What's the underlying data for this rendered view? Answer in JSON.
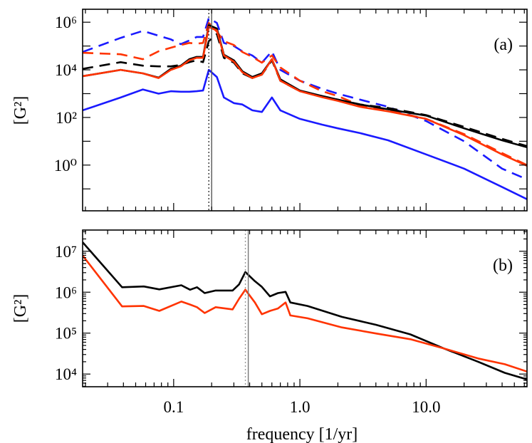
{
  "chart_data": [
    {
      "type": "line",
      "panel_label": "(a)",
      "ylabel": "[G²]",
      "xlabel": "",
      "x_scale": "log",
      "y_scale": "log",
      "xlim": [
        0.019,
        63
      ],
      "ylim": [
        0.012,
        3500000.0
      ],
      "x_ticks": [
        0.1,
        1.0,
        10.0
      ],
      "x_tick_labels": [],
      "y_ticks": [
        1000000.0,
        10000.0,
        100.0,
        1
      ],
      "y_tick_labels": [
        "10⁶",
        "10⁴",
        "10²",
        "10⁰"
      ],
      "vertical_markers": [
        {
          "x": 0.19,
          "style": "dotted",
          "color": "#333333"
        },
        {
          "x": 0.2,
          "style": "solid",
          "color": "#555555"
        }
      ],
      "x": [
        0.019,
        0.038,
        0.057,
        0.076,
        0.095,
        0.114,
        0.133,
        0.152,
        0.171,
        0.19,
        0.22,
        0.25,
        0.3,
        0.35,
        0.42,
        0.5,
        0.6,
        0.7,
        1.0,
        1.5,
        2,
        3,
        5,
        10,
        20,
        40,
        63
      ],
      "series": [
        {
          "color": "#1a1aff",
          "style": "dashed",
          "values": [
            56000.0,
            220000.0,
            430000.0,
            270000.0,
            190000.0,
            120000.0,
            170000.0,
            240000.0,
            240000.0,
            1500000.0,
            930000.0,
            135000.0,
            100000.0,
            60000.0,
            40000.0,
            20000.0,
            60000.0,
            10000.0,
            3500.0,
            1600.0,
            1000.0,
            560.0,
            280.0,
            71,
            10,
            0.71,
            0.25
          ]
        },
        {
          "color": "#ff3300",
          "style": "dashed",
          "values": [
            52000.0,
            45000.0,
            28000.0,
            60000.0,
            85000.0,
            110000.0,
            135000.0,
            126000.0,
            135000.0,
            930000.0,
            400000.0,
            160000.0,
            110000.0,
            56000.0,
            35000.0,
            20000.0,
            40000.0,
            12600.0,
            3500.0,
            1260.0,
            790.0,
            320.0,
            200.0,
            87,
            20,
            3.2,
            1.0
          ]
        },
        {
          "color": "#000000",
          "style": "dashed",
          "values": [
            11000.0,
            21000.0,
            15000.0,
            14000.0,
            14000.0,
            16000.0,
            21000.0,
            25000.0,
            21000.0,
            160000.0,
            320000.0,
            32000.0,
            20000.0,
            7100.0,
            4500.0,
            6300.0,
            25000.0,
            3500.0,
            1260.0,
            790.0,
            560.0,
            350.0,
            250.0,
            126.0,
            40,
            12.6,
            6.3
          ]
        },
        {
          "color": "#000000",
          "style": "solid",
          "values": [
            5400.0,
            10000.0,
            7100.0,
            4700.0,
            11000.0,
            15000.0,
            28000.0,
            35000.0,
            35000.0,
            760000.0,
            540000.0,
            43000.0,
            25000.0,
            8700.0,
            5000.0,
            7100.0,
            28000.0,
            4000.0,
            1350.0,
            790.0,
            560.0,
            350.0,
            220.0,
            120.0,
            35,
            11,
            5.6
          ]
        },
        {
          "color": "#ff3300",
          "style": "solid",
          "values": [
            5400.0,
            10000.0,
            7100.0,
            4500.0,
            10000.0,
            14000.0,
            25000.0,
            32000.0,
            32000.0,
            630000.0,
            450000.0,
            40000.0,
            22000.0,
            7900.0,
            4500.0,
            6300.0,
            28000.0,
            3500.0,
            1260.0,
            710.0,
            500.0,
            280.0,
            180.0,
            87,
            18,
            2.8,
            0.93
          ]
        },
        {
          "color": "#1a1aff",
          "style": "solid",
          "values": [
            200,
            690,
            1500.0,
            1000.0,
            1260.0,
            1200.0,
            1200.0,
            1260.0,
            1350.0,
            10000.0,
            5000.0,
            690,
            400,
            350,
            200,
            170,
            690,
            200,
            87,
            50,
            35,
            22,
            11,
            2.8,
            0.71,
            0.12,
            0.037
          ]
        }
      ]
    },
    {
      "type": "line",
      "panel_label": "(b)",
      "ylabel": "[G²]",
      "xlabel": "frequency [1/yr]",
      "x_scale": "log",
      "y_scale": "log",
      "xlim": [
        0.019,
        63
      ],
      "ylim": [
        4900.0,
        33000000.0
      ],
      "x_ticks": [
        0.1,
        1.0,
        10.0
      ],
      "x_tick_labels": [
        "0.1",
        "1.0",
        "10.0"
      ],
      "y_ticks": [
        10000000.0,
        1000000.0,
        100000.0,
        10000.0
      ],
      "y_tick_labels": [
        "10⁷",
        "10⁶",
        "10⁵",
        "10⁴"
      ],
      "vertical_markers": [
        {
          "x": 0.37,
          "style": "dotted",
          "color": "#999999"
        },
        {
          "x": 0.39,
          "style": "solid",
          "color": "#777777"
        }
      ],
      "x": [
        0.019,
        0.039,
        0.058,
        0.077,
        0.115,
        0.135,
        0.153,
        0.176,
        0.215,
        0.293,
        0.33,
        0.37,
        0.44,
        0.5,
        0.58,
        0.67,
        0.77,
        0.84,
        1.15,
        2.15,
        4.0,
        7.5,
        13.9,
        25.8,
        42,
        63
      ],
      "series": [
        {
          "color": "#000000",
          "style": "solid",
          "values": [
            16600000.0,
            1320000.0,
            1380000.0,
            1170000.0,
            1480000.0,
            1150000.0,
            1320000.0,
            950000.0,
            1100000.0,
            1100000.0,
            1550000.0,
            3100000.0,
            1860000.0,
            1350000.0,
            790000.0,
            950000.0,
            1020000.0,
            560000.0,
            460000.0,
            250000.0,
            160000.0,
            93000.0,
            42000.0,
            20000.0,
            10700.0,
            7400.0
          ]
        },
        {
          "color": "#ff3300",
          "style": "solid",
          "values": [
            7900000.0,
            450000.0,
            460000.0,
            350000.0,
            590000.0,
            500000.0,
            430000.0,
            310000.0,
            430000.0,
            380000.0,
            690000.0,
            1150000.0,
            560000.0,
            290000.0,
            350000.0,
            400000.0,
            560000.0,
            270000.0,
            230000.0,
            138000.0,
            98000.0,
            71000.0,
            42000.0,
            24000.0,
            17400.0,
            11500.0
          ]
        }
      ]
    }
  ]
}
